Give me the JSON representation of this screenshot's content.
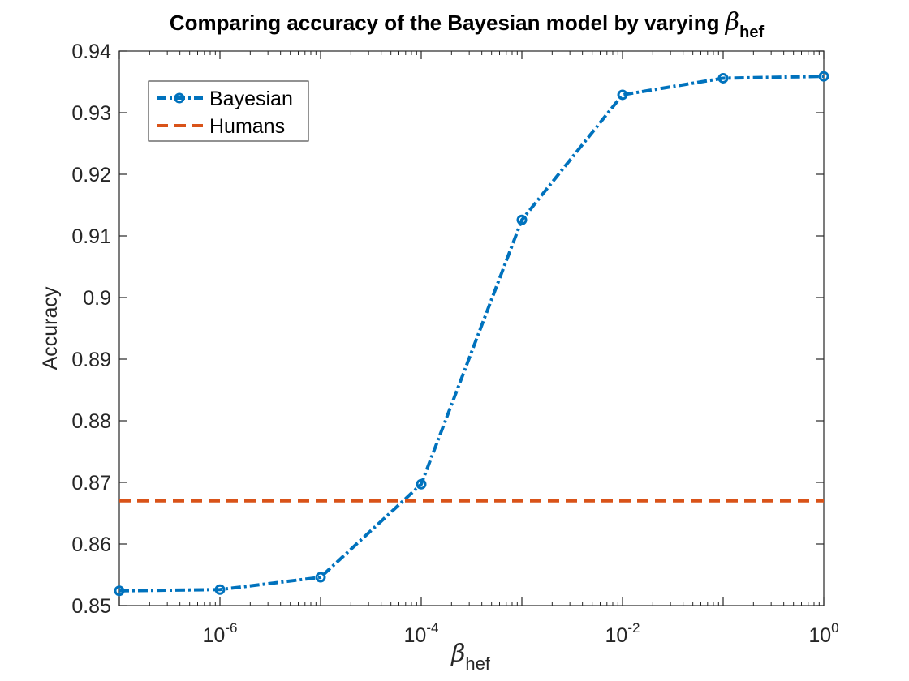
{
  "chart_data": {
    "type": "line",
    "title": {
      "text": "Comparing accuracy of the Bayesian model by varying ",
      "symbol": "β",
      "subscript": "hef"
    },
    "xlabel": {
      "symbol": "β",
      "subscript": "hef"
    },
    "ylabel": "Accuracy",
    "x_scale": "log",
    "xlim": [
      1e-07,
      1
    ],
    "ylim": [
      0.85,
      0.94
    ],
    "x_ticks": [
      {
        "value": 1e-06,
        "base": "10",
        "exp": "-6"
      },
      {
        "value": 0.0001,
        "base": "10",
        "exp": "-4"
      },
      {
        "value": 0.01,
        "base": "10",
        "exp": "-2"
      },
      {
        "value": 1,
        "base": "10",
        "exp": "0"
      }
    ],
    "y_ticks": [
      0.85,
      0.86,
      0.87,
      0.88,
      0.89,
      0.9,
      0.91,
      0.92,
      0.93,
      0.94
    ],
    "y_tick_labels": [
      "0.85",
      "0.86",
      "0.87",
      "0.88",
      "0.89",
      "0.9",
      "0.91",
      "0.92",
      "0.93",
      "0.94"
    ],
    "legend_position": "top-left",
    "series": [
      {
        "name": "Bayesian",
        "color": "#0072BD",
        "style": "dash-dot",
        "marker": "circle",
        "x": [
          1e-07,
          1e-06,
          1e-05,
          0.0001,
          0.001,
          0.01,
          0.1,
          1
        ],
        "y": [
          0.8524,
          0.8526,
          0.8546,
          0.8697,
          0.9126,
          0.9329,
          0.9356,
          0.9359
        ]
      },
      {
        "name": "Humans",
        "color": "#D95319",
        "style": "dashed",
        "marker": "none",
        "x": [
          1e-07,
          1
        ],
        "y": [
          0.867,
          0.867
        ]
      }
    ]
  }
}
